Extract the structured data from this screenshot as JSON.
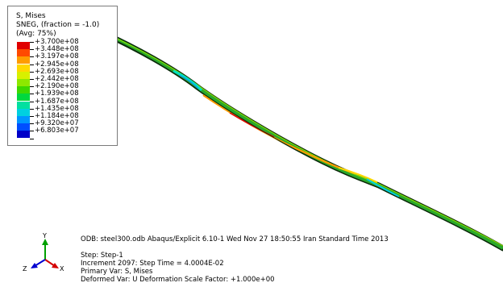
{
  "legend": {
    "title_lines": [
      "S, Mises",
      "SNEG, (fraction = -1.0)",
      "(Avg: 75%)"
    ],
    "entries": [
      {
        "value": "+3.700e+08",
        "color": "#e00000"
      },
      {
        "value": "+3.448e+08",
        "color": "#ff4a00"
      },
      {
        "value": "+3.197e+08",
        "color": "#ff9c00"
      },
      {
        "value": "+2.945e+08",
        "color": "#ffd800"
      },
      {
        "value": "+2.693e+08",
        "color": "#d8f000"
      },
      {
        "value": "+2.442e+08",
        "color": "#8ee800"
      },
      {
        "value": "+2.190e+08",
        "color": "#3ed800"
      },
      {
        "value": "+1.939e+08",
        "color": "#00d83e"
      },
      {
        "value": "+1.687e+08",
        "color": "#00e0a0"
      },
      {
        "value": "+1.435e+08",
        "color": "#00d0e0"
      },
      {
        "value": "+1.184e+08",
        "color": "#0096ff"
      },
      {
        "value": "+9.320e+07",
        "color": "#004eff"
      },
      {
        "value": "+6.803e+07",
        "color": "#0000c8"
      }
    ]
  },
  "info": {
    "odb_line": "ODB: steel300.odb    Abaqus/Explicit 6.10-1    Wed Nov 27 18:50:55 Iran Standard Time 2013",
    "step_line": "Step: Step-1",
    "increment_line": "Increment      2097: Step Time =    4.0004E-02",
    "primary_var_line": "Primary Var: S, Mises",
    "deformed_var_line": "Deformed Var: U   Deformation Scale Factor: +1.000e+00"
  },
  "triad": {
    "x_label": "X",
    "y_label": "Y",
    "z_label": "Z"
  },
  "colors": {
    "background": "#ffffff",
    "model_outline": "#0a2a0a",
    "model_base": "#2aa82a",
    "axis_x": "#d40000",
    "axis_y": "#00a000",
    "axis_z": "#0000d0"
  }
}
